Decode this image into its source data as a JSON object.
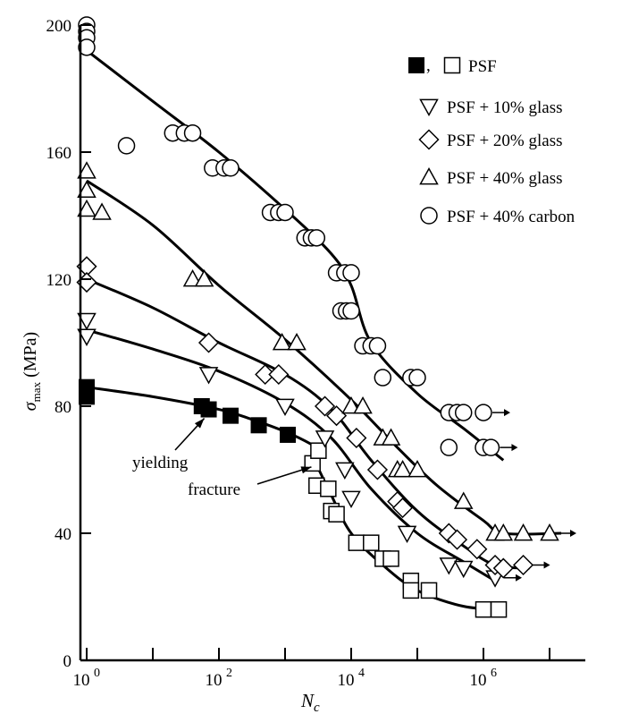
{
  "chart_data": {
    "type": "scatter",
    "title": "",
    "xlabel": "N_c",
    "xlabel_main": "N",
    "xlabel_sub": "c",
    "ylabel": "σ_max (MPa)",
    "ylabel_symbol": "σ",
    "ylabel_sub": "max",
    "ylabel_unit": "(MPa)",
    "x_scale": "log",
    "xlim": [
      0.75,
      30000000
    ],
    "ylim": [
      0,
      200
    ],
    "x_ticks": [
      {
        "value": 1,
        "label": "10",
        "exp": "0"
      },
      {
        "value": 100,
        "label": "10",
        "exp": "2"
      },
      {
        "value": 10000,
        "label": "10",
        "exp": "4"
      },
      {
        "value": 1000000,
        "label": "10",
        "exp": "6"
      }
    ],
    "x_minor_ticks": [
      10,
      1000,
      100000,
      10000000
    ],
    "y_ticks": [
      0,
      40,
      80,
      120,
      160,
      200
    ],
    "grid": false,
    "legend_position": "top-right",
    "legend_entries": [
      {
        "marker": "filled-square+open-square",
        "label": "PSF"
      },
      {
        "marker": "triangle-down",
        "label": "PSF + 10% glass"
      },
      {
        "marker": "diamond",
        "label": "PSF + 20% glass"
      },
      {
        "marker": "triangle-up",
        "label": "PSF + 40% glass"
      },
      {
        "marker": "circle",
        "label": "PSF + 40% carbon"
      }
    ],
    "annotations": [
      {
        "text": "yielding",
        "x": 20,
        "y": 66,
        "target_x": 60,
        "target_y": 79
      },
      {
        "text": "fracture",
        "x": 400,
        "y": 57,
        "target_x": 2500,
        "target_y": 62
      }
    ],
    "series": [
      {
        "name": "PSF (yielding)",
        "marker": "filled-square",
        "points": [
          [
            1,
            86
          ],
          [
            1,
            83
          ],
          [
            55,
            80
          ],
          [
            70,
            79
          ],
          [
            150,
            77
          ],
          [
            400,
            74
          ],
          [
            1100,
            71
          ]
        ],
        "curve": [
          [
            1,
            86
          ],
          [
            10,
            83
          ],
          [
            100,
            79
          ],
          [
            300,
            76
          ],
          [
            1000,
            72
          ],
          [
            2500,
            68
          ],
          [
            4000,
            65
          ]
        ]
      },
      {
        "name": "PSF (fracture)",
        "marker": "open-square",
        "points": [
          [
            2600,
            62
          ],
          [
            3200,
            66
          ],
          [
            3000,
            55
          ],
          [
            4500,
            54
          ],
          [
            5000,
            47
          ],
          [
            6000,
            46
          ],
          [
            12000,
            37
          ],
          [
            20000,
            37
          ],
          [
            30000,
            32
          ],
          [
            40000,
            32
          ],
          [
            80000,
            25
          ],
          [
            80000,
            22
          ],
          [
            150000,
            22
          ],
          [
            1000000,
            16
          ],
          [
            1700000,
            16
          ]
        ],
        "curve": [
          [
            2500,
            65
          ],
          [
            5000,
            52
          ],
          [
            10000,
            40
          ],
          [
            30000,
            30
          ],
          [
            100000,
            22
          ],
          [
            500000,
            17
          ],
          [
            2000000,
            16
          ]
        ]
      },
      {
        "name": "PSF + 10% glass",
        "marker": "triangle-down",
        "points": [
          [
            1,
            107
          ],
          [
            1,
            102
          ],
          [
            70,
            90
          ],
          [
            1000,
            80
          ],
          [
            4000,
            70
          ],
          [
            8000,
            60
          ],
          [
            10000,
            51
          ],
          [
            70000,
            40
          ],
          [
            300000,
            30
          ],
          [
            500000,
            29
          ],
          [
            1500000,
            26
          ]
        ],
        "curve": [
          [
            1,
            104
          ],
          [
            10,
            98
          ],
          [
            100,
            91
          ],
          [
            1000,
            81
          ],
          [
            5000,
            70
          ],
          [
            20000,
            54
          ],
          [
            100000,
            40
          ],
          [
            500000,
            31
          ],
          [
            1500000,
            25
          ]
        ]
      },
      {
        "name": "PSF + 20% glass",
        "marker": "diamond",
        "points": [
          [
            1,
            124
          ],
          [
            1,
            119
          ],
          [
            70,
            100
          ],
          [
            500,
            90
          ],
          [
            800,
            90
          ],
          [
            4000,
            80
          ],
          [
            6000,
            77
          ],
          [
            12000,
            70
          ],
          [
            25000,
            60
          ],
          [
            50000,
            50
          ],
          [
            60000,
            48
          ],
          [
            300000,
            40
          ],
          [
            400000,
            38
          ],
          [
            800000,
            35
          ],
          [
            1500000,
            30
          ],
          [
            2000000,
            29
          ],
          [
            4000000,
            30
          ]
        ],
        "curve": [
          [
            1,
            120
          ],
          [
            10,
            111
          ],
          [
            100,
            100
          ],
          [
            1000,
            90
          ],
          [
            5000,
            79
          ],
          [
            20000,
            63
          ],
          [
            100000,
            47
          ],
          [
            500000,
            36
          ],
          [
            1500000,
            30
          ],
          [
            5000000,
            29
          ]
        ]
      },
      {
        "name": "PSF + 40% glass",
        "marker": "triangle-up",
        "points": [
          [
            1,
            154
          ],
          [
            1,
            148
          ],
          [
            1,
            142
          ],
          [
            1.7,
            141
          ],
          [
            40,
            120
          ],
          [
            60,
            120
          ],
          [
            900,
            100
          ],
          [
            1500,
            100
          ],
          [
            10000,
            80
          ],
          [
            15000,
            80
          ],
          [
            30000,
            70
          ],
          [
            40000,
            70
          ],
          [
            50000,
            60
          ],
          [
            60000,
            60
          ],
          [
            100000,
            60
          ],
          [
            500000,
            50
          ],
          [
            1500000,
            40
          ],
          [
            2000000,
            40
          ],
          [
            4000000,
            40
          ],
          [
            10000000,
            40
          ]
        ],
        "curve": [
          [
            1,
            151
          ],
          [
            10,
            137
          ],
          [
            100,
            118
          ],
          [
            1000,
            101
          ],
          [
            10000,
            82
          ],
          [
            50000,
            67
          ],
          [
            200000,
            55
          ],
          [
            1000000,
            44
          ],
          [
            2000000,
            40
          ],
          [
            15000000,
            40
          ]
        ]
      },
      {
        "name": "PSF + 40% carbon",
        "marker": "circle",
        "points": [
          [
            1,
            200
          ],
          [
            1,
            198
          ],
          [
            1,
            196
          ],
          [
            1,
            193
          ],
          [
            4,
            162
          ],
          [
            20,
            166
          ],
          [
            30,
            166
          ],
          [
            40,
            166
          ],
          [
            80,
            155
          ],
          [
            120,
            155
          ],
          [
            150,
            155
          ],
          [
            600,
            141
          ],
          [
            800,
            141
          ],
          [
            1000,
            141
          ],
          [
            2000,
            133
          ],
          [
            2500,
            133
          ],
          [
            3000,
            133
          ],
          [
            6000,
            122
          ],
          [
            8000,
            122
          ],
          [
            10000,
            122
          ],
          [
            7000,
            110
          ],
          [
            8500,
            110
          ],
          [
            10000,
            110
          ],
          [
            15000,
            99
          ],
          [
            20000,
            99
          ],
          [
            25000,
            99
          ],
          [
            30000,
            89
          ],
          [
            80000,
            89
          ],
          [
            100000,
            89
          ],
          [
            300000,
            78
          ],
          [
            400000,
            78
          ],
          [
            500000,
            78
          ],
          [
            1000000,
            78
          ],
          [
            300000,
            67
          ],
          [
            1000000,
            67
          ],
          [
            1300000,
            67
          ]
        ],
        "curve": [
          [
            1,
            192
          ],
          [
            10,
            176
          ],
          [
            100,
            160
          ],
          [
            1000,
            142
          ],
          [
            5000,
            128
          ],
          [
            10000,
            118
          ],
          [
            20000,
            100
          ],
          [
            100000,
            84
          ],
          [
            500000,
            73
          ],
          [
            2000000,
            63
          ]
        ]
      }
    ],
    "arrowed_points": [
      {
        "series": "PSF + 40% carbon",
        "x": 1000000,
        "y": 78
      },
      {
        "series": "PSF + 40% carbon",
        "x": 1300000,
        "y": 67
      },
      {
        "series": "PSF + 40% glass",
        "x": 10000000,
        "y": 40
      },
      {
        "series": "PSF + 20% glass",
        "x": 4000000,
        "y": 30
      },
      {
        "series": "PSF + 10% glass",
        "x": 1500000,
        "y": 26
      }
    ]
  }
}
